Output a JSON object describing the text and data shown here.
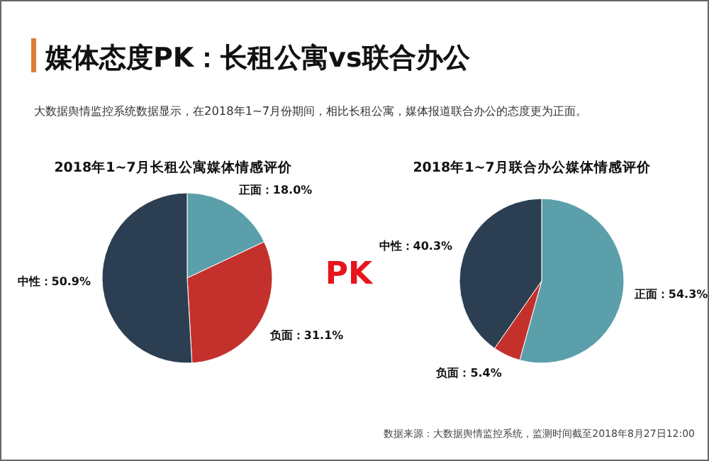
{
  "chart_data": [
    {
      "type": "pie",
      "title": "2018年1~7月长租公寓媒体情感评价",
      "categories": [
        "正面",
        "负面",
        "中性"
      ],
      "values": [
        18.0,
        31.1,
        50.9
      ],
      "value_labels": [
        "：18.0%",
        "：31.1%",
        "：50.9%"
      ],
      "colors": [
        "#5b9fab",
        "#c4312d",
        "#2c3f52"
      ],
      "annotations": [
        "媒体态度PK：长租公寓vs联合办公",
        "大数据舆情监控系统数据显示，在2018年1~7月份期间，相比长租公寓，媒体报道联合办公的态度更为正面。",
        "PK"
      ]
    },
    {
      "type": "pie",
      "title": "2018年1~7月联合办公媒体情感评价",
      "categories": [
        "正面",
        "负面",
        "中性"
      ],
      "values": [
        54.3,
        5.4,
        40.3
      ],
      "value_labels": [
        "：54.3%",
        "：5.4%",
        "：40.3%"
      ],
      "colors": [
        "#5b9fab",
        "#c4312d",
        "#2c3f52"
      ],
      "annotations": [
        "数据来源：大数据舆情监控系统，监测时间截至2018年8月27日12:00"
      ]
    }
  ]
}
